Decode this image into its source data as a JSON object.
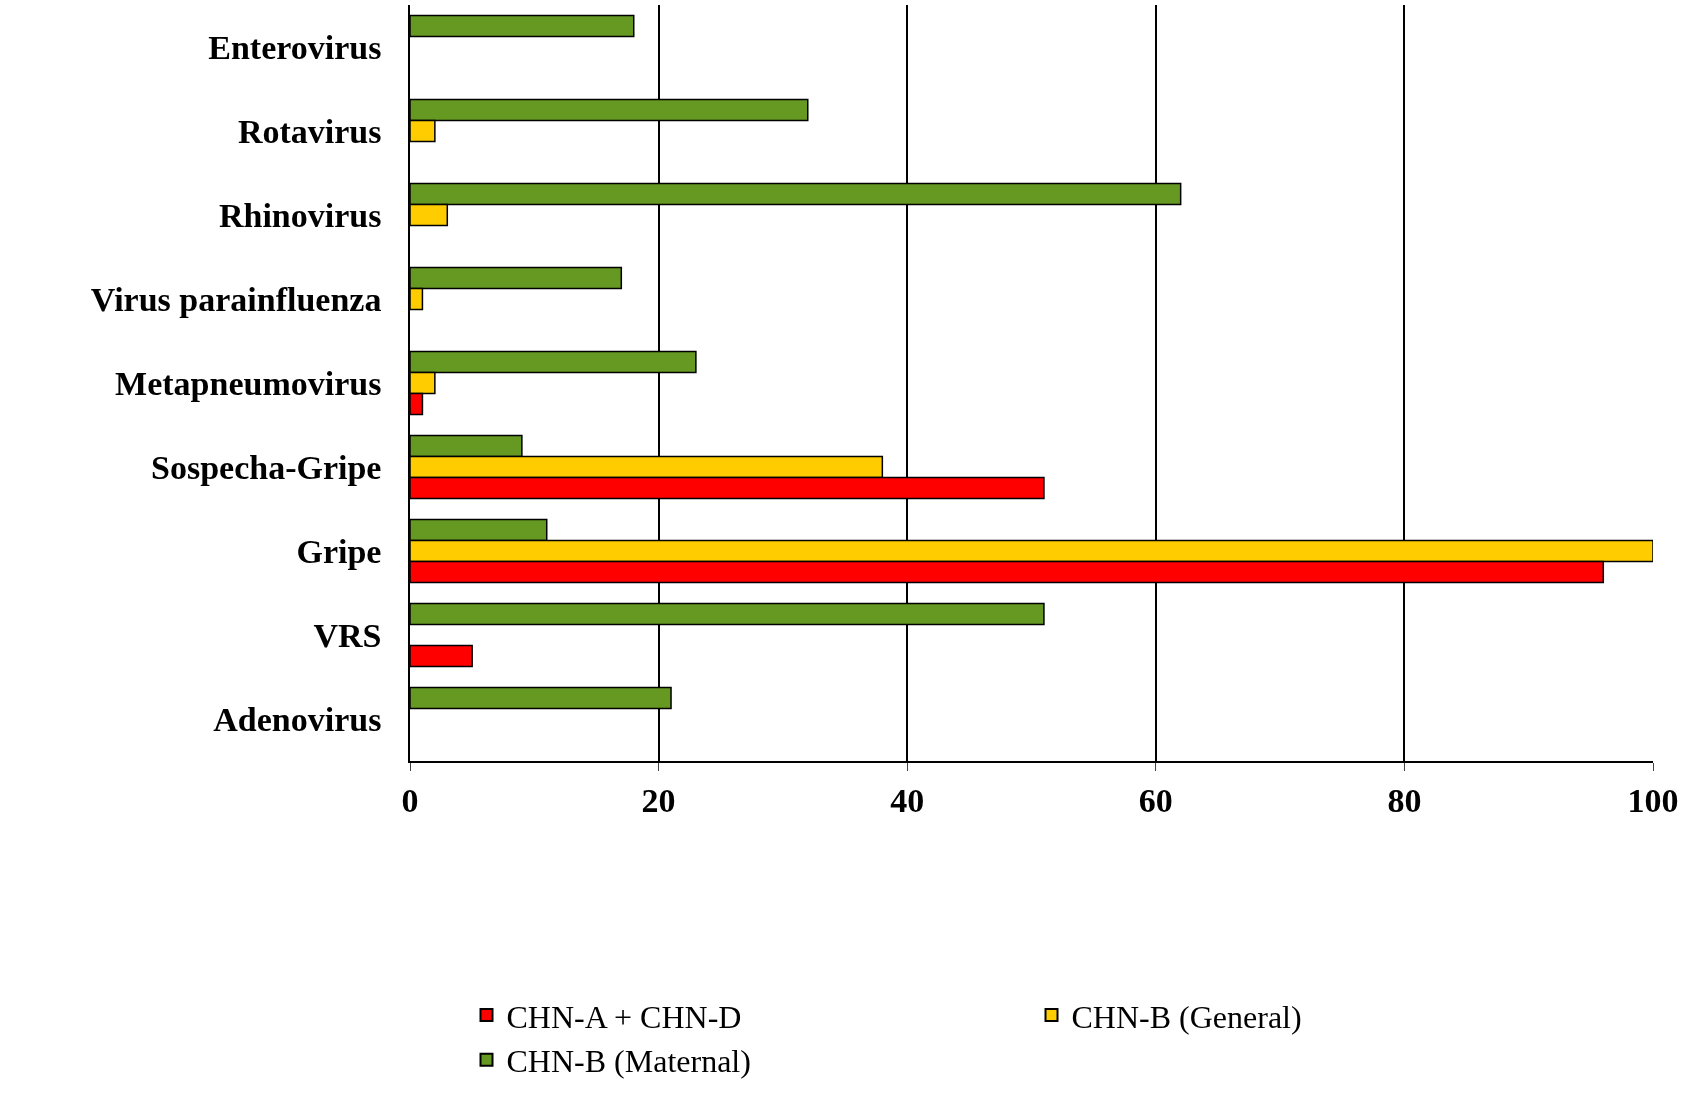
{
  "chart_data": {
    "type": "bar",
    "orientation": "horizontal",
    "categories": [
      "Enterovirus",
      "Rotavirus",
      "Rhinovirus",
      "Virus parainfluenza",
      "Metapneumovirus",
      "Sospecha-Gripe",
      "Gripe",
      "VRS",
      "Adenovirus"
    ],
    "series": [
      {
        "name": "CHN-A + CHN-D",
        "color": "#ff0000",
        "values": [
          null,
          null,
          null,
          null,
          1,
          51,
          96,
          5,
          null
        ]
      },
      {
        "name": "CHN-B (General)",
        "color": "#ffcc00",
        "values": [
          null,
          2,
          3,
          1,
          2,
          38,
          100,
          null,
          null
        ]
      },
      {
        "name": "CHN-B (Maternal)",
        "color": "#669922",
        "values": [
          18,
          32,
          62,
          17,
          23,
          9,
          11,
          51,
          21
        ]
      }
    ],
    "xlim": [
      0,
      100
    ],
    "xticks": [
      0,
      20,
      40,
      60,
      80,
      100
    ],
    "grid": "x",
    "legend": "bottom"
  }
}
